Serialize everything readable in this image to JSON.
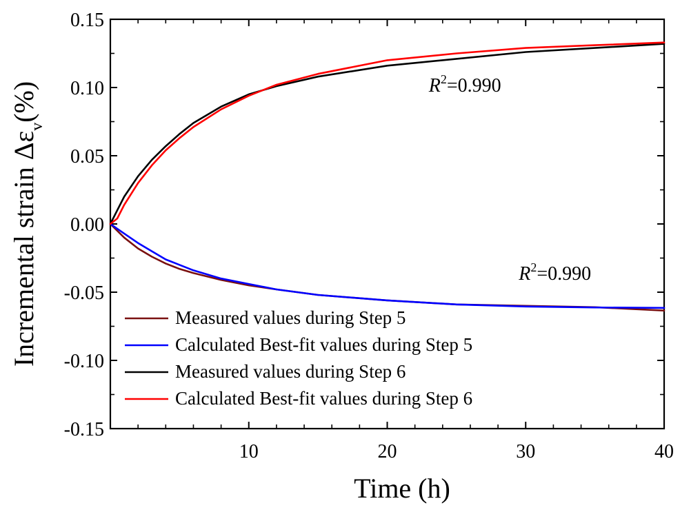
{
  "chart_data": {
    "type": "line",
    "title": "",
    "xlabel": "Time (h)",
    "ylabel": {
      "main": "Incremental strain Δε",
      "subscript": "v",
      "unit": "(%)"
    },
    "xlim": [
      0,
      40
    ],
    "ylim": [
      -0.15,
      0.15
    ],
    "x_ticks": [
      10,
      20,
      30,
      40
    ],
    "x_tick_labels": [
      "10",
      "20",
      "30",
      "40"
    ],
    "y_ticks": [
      0.15,
      0.1,
      0.05,
      0.0,
      -0.05,
      -0.1,
      -0.15
    ],
    "y_tick_labels": [
      "0.15",
      "0.10",
      "0.05",
      "0.00",
      "-0.05",
      "-0.10",
      "-0.15"
    ],
    "grid": false,
    "legend_position": "bottom-left",
    "series": [
      {
        "name": "Measured values during Step 5",
        "color": "#7a1010",
        "x": [
          0,
          1,
          2,
          3,
          4,
          5,
          6,
          8,
          10,
          12,
          15,
          20,
          25,
          30,
          35,
          40
        ],
        "y": [
          0,
          -0.01,
          -0.018,
          -0.024,
          -0.029,
          -0.033,
          -0.036,
          -0.041,
          -0.045,
          -0.048,
          -0.052,
          -0.056,
          -0.059,
          -0.06,
          -0.061,
          -0.0635
        ]
      },
      {
        "name": "Calculated Best-fit values during Step 5",
        "color": "#0000ff",
        "x": [
          0,
          1,
          2,
          3,
          4,
          5,
          6,
          8,
          10,
          12,
          15,
          20,
          25,
          30,
          35,
          40
        ],
        "y": [
          0,
          -0.007,
          -0.014,
          -0.02,
          -0.026,
          -0.03,
          -0.034,
          -0.04,
          -0.044,
          -0.048,
          -0.052,
          -0.056,
          -0.059,
          -0.0605,
          -0.0612,
          -0.0615
        ]
      },
      {
        "name": "Measured values during Step 6",
        "color": "#000000",
        "x": [
          0,
          0.5,
          1,
          2,
          3,
          4,
          5,
          6,
          8,
          10,
          12,
          15,
          20,
          25,
          30,
          35,
          40
        ],
        "y": [
          0,
          0.01,
          0.02,
          0.035,
          0.047,
          0.057,
          0.066,
          0.074,
          0.086,
          0.095,
          0.101,
          0.108,
          0.116,
          0.121,
          0.126,
          0.129,
          0.132
        ]
      },
      {
        "name": "Calculated Best-fit values during Step 6",
        "color": "#ff0000",
        "x": [
          0,
          0.5,
          1,
          2,
          3,
          4,
          5,
          6,
          8,
          10,
          12,
          15,
          20,
          25,
          30,
          35,
          40
        ],
        "y": [
          0,
          0.004,
          0.014,
          0.03,
          0.043,
          0.054,
          0.063,
          0.071,
          0.084,
          0.094,
          0.102,
          0.11,
          0.12,
          0.125,
          0.129,
          0.131,
          0.133
        ]
      }
    ],
    "annotations": [
      {
        "label": "R",
        "superscript": "2",
        "value": "=0.990",
        "x": 23,
        "y": 0.097
      },
      {
        "label": "R",
        "superscript": "2",
        "value": "=0.990",
        "x": 29.5,
        "y": -0.041
      }
    ]
  }
}
